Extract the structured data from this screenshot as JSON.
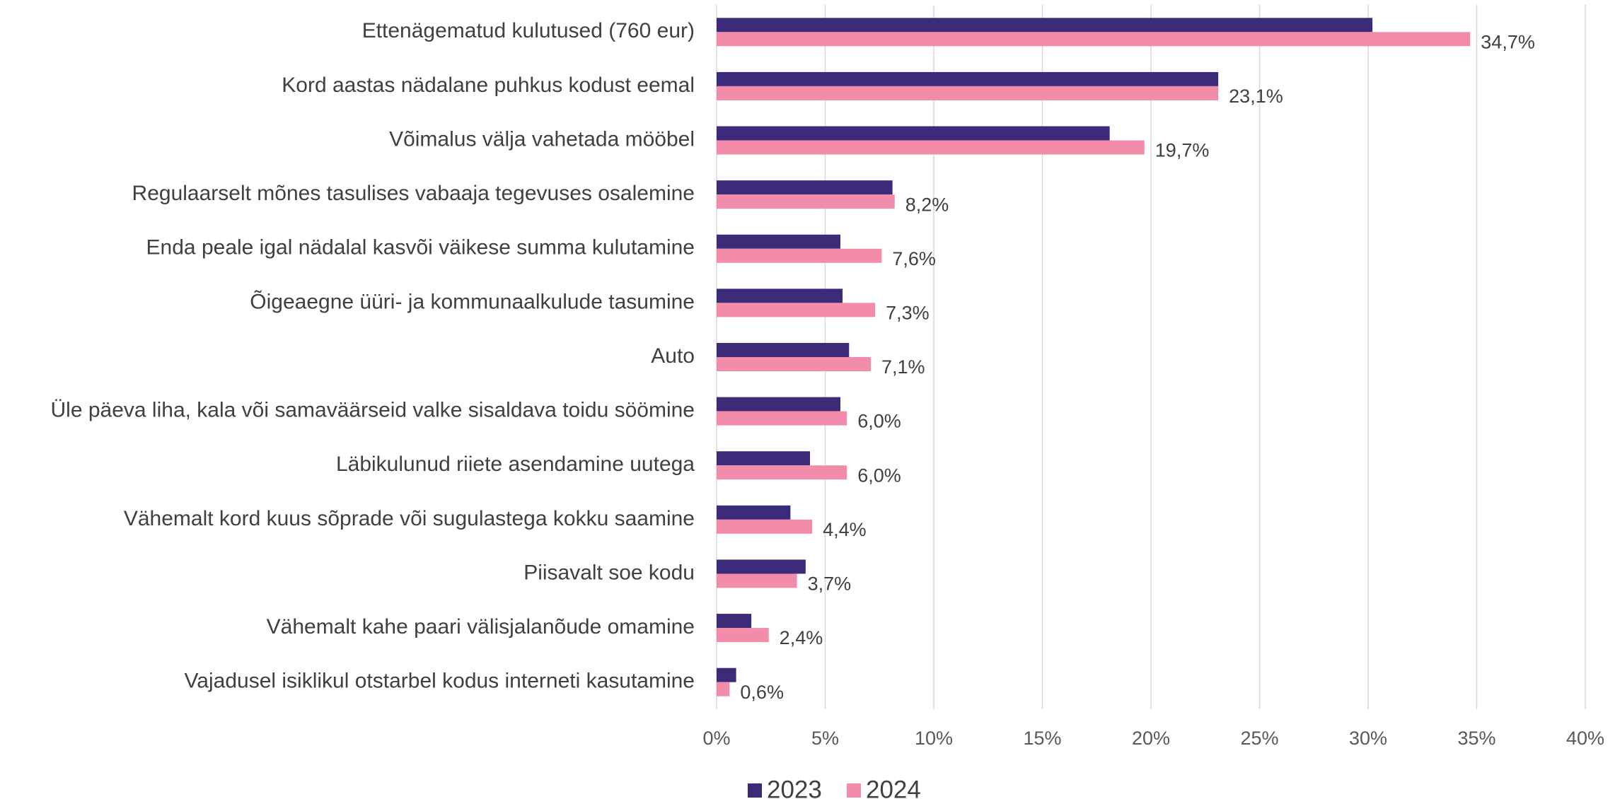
{
  "chart_data": {
    "type": "bar",
    "orientation": "horizontal",
    "categories": [
      "Ettenägematud kulutused (760 eur)",
      "Kord aastas nädalane puhkus kodust eemal",
      "Võimalus välja vahetada mööbel",
      "Regulaarselt mõnes tasulises vabaaja tegevuses osalemine",
      "Enda peale igal nädalal kasvõi väikese summa kulutamine",
      "Õigeaegne üüri- ja kommunaalkulude tasumine",
      "Auto",
      "Üle päeva liha, kala või samaväärseid valke sisaldava toidu söömine",
      "Läbikulunud riiete asendamine uutega",
      "Vähemalt kord kuus sõprade või sugulastega kokku saamine",
      "Piisavalt soe kodu",
      "Vähemalt kahe paari välisjalanõude omamine",
      "Vajadusel isiklikul otstarbel kodus interneti kasutamine"
    ],
    "series": [
      {
        "name": "2023",
        "color": "#3d2b7a",
        "values": [
          30.2,
          23.1,
          18.1,
          8.1,
          5.7,
          5.8,
          6.1,
          5.7,
          4.3,
          3.4,
          4.1,
          1.6,
          0.9
        ]
      },
      {
        "name": "2024",
        "color": "#f28caa",
        "values": [
          34.7,
          23.1,
          19.7,
          8.2,
          7.6,
          7.3,
          7.1,
          6.0,
          6.0,
          4.4,
          3.7,
          2.4,
          0.6
        ],
        "value_labels": [
          "34,7%",
          "23,1%",
          "19,7%",
          "8,2%",
          "7,6%",
          "7,3%",
          "7,1%",
          "6,0%",
          "6,0%",
          "4,4%",
          "3,7%",
          "2,4%",
          "0,6%"
        ]
      }
    ],
    "xlim": [
      0,
      40
    ],
    "xticks": [
      {
        "value": 0,
        "label": "0%"
      },
      {
        "value": 5,
        "label": "5%"
      },
      {
        "value": 10,
        "label": "10%"
      },
      {
        "value": 15,
        "label": "15%"
      },
      {
        "value": 20,
        "label": "20%"
      },
      {
        "value": 25,
        "label": "25%"
      },
      {
        "value": 30,
        "label": "30%"
      },
      {
        "value": 35,
        "label": "35%"
      },
      {
        "value": 40,
        "label": "40%"
      }
    ],
    "grid": true,
    "legend": "bottom"
  }
}
